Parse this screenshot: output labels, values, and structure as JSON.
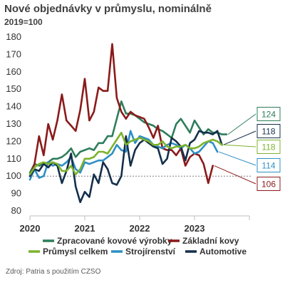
{
  "title": "Nové objednávky v průmyslu, nominálně",
  "subtitle": "2019=100",
  "source": "Zdroj: Patria s použitím CZSO",
  "chart_data": {
    "type": "line",
    "x_start": "2020-01",
    "x_frequency": "monthly",
    "x_ticks": [
      "2020",
      "2021",
      "2022",
      "2023"
    ],
    "ylim": [
      80,
      180
    ],
    "yticks": [
      80,
      90,
      100,
      110,
      120,
      130,
      140,
      150,
      160,
      170,
      180
    ],
    "reference_line": 100,
    "grid": false,
    "legend_position": "bottom",
    "series": [
      {
        "name": "Zpracované kovové výrobky",
        "color": "#2e7d5b",
        "end_label": "124",
        "values": [
          102,
          107,
          106,
          107,
          108,
          110,
          110,
          111,
          113,
          116,
          111,
          114,
          115,
          116,
          115,
          119,
          119,
          123,
          123,
          133,
          143,
          136,
          136,
          135,
          133,
          131,
          130,
          129,
          127,
          126,
          124,
          122,
          130,
          133,
          129,
          125,
          132,
          128,
          124,
          127,
          125,
          125,
          124,
          124
        ]
      },
      {
        "name": "Základní kovy",
        "color": "#8b1a1a",
        "end_label": "106",
        "values": [
          100,
          107,
          123,
          112,
          130,
          121,
          132,
          147,
          132,
          129,
          126,
          138,
          156,
          132,
          137,
          151,
          149,
          149,
          176,
          145,
          137,
          133,
          137,
          135,
          134,
          133,
          128,
          122,
          129,
          116,
          115,
          115,
          112,
          116,
          106,
          111,
          113,
          112,
          107,
          96,
          106
        ]
      },
      {
        "name": "Průmysl celkem",
        "color": "#7cb32d",
        "end_label": "118",
        "values": [
          101,
          105,
          107,
          108,
          107,
          108,
          107,
          103,
          103,
          106,
          101,
          104,
          110,
          110,
          111,
          114,
          114,
          113,
          117,
          121,
          125,
          118,
          120,
          121,
          122,
          121,
          120,
          118,
          118,
          120,
          117,
          116,
          117,
          117,
          118,
          116,
          116,
          117,
          119,
          120,
          121,
          120,
          118
        ]
      },
      {
        "name": "Strojírenství",
        "color": "#2e8fc4",
        "end_label": "114",
        "values": [
          98,
          104,
          99,
          100,
          108,
          106,
          107,
          106,
          108,
          111,
          104,
          102,
          108,
          107,
          108,
          109,
          109,
          111,
          113,
          118,
          115,
          114,
          126,
          119,
          123,
          122,
          121,
          118,
          117,
          116,
          118,
          119,
          118,
          116,
          118,
          116,
          113,
          114,
          117,
          120,
          119,
          114
        ]
      },
      {
        "name": "Automotive",
        "color": "#142f4b",
        "end_label": "118",
        "values": [
          100,
          104,
          103,
          107,
          105,
          108,
          106,
          96,
          103,
          113,
          94,
          85,
          91,
          88,
          101,
          96,
          108,
          104,
          96,
          95,
          100,
          123,
          106,
          115,
          119,
          121,
          119,
          117,
          116,
          107,
          110,
          122,
          120,
          117,
          109,
          119,
          121,
          126,
          125,
          125,
          124,
          126,
          118
        ]
      }
    ]
  }
}
